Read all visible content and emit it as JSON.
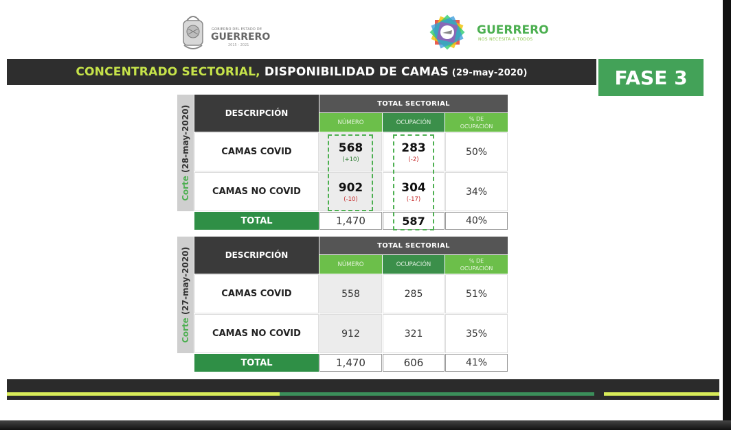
{
  "header": {
    "gov_logo": {
      "small_text": "GOBIERNO DEL ESTADO DE",
      "name": "GUERRERO",
      "years": "2015 - 2021"
    },
    "brand_logo": {
      "name": "GUERRERO",
      "slogan": "NOS NECESITA A TODOS"
    }
  },
  "title_bar": {
    "part1": "CONCENTRADO SECTORIAL,",
    "part2": " DISPONIBILIDAD DE CAMAS",
    "date": " (29-may-2020)"
  },
  "phase_badge": "FASE 3",
  "tables": [
    {
      "side_prefix": "Corte",
      "side_date": " (28-may-2020)",
      "headers": {
        "descripcion": "DESCRIPCIÓN",
        "total_sectorial": "TOTAL SECTORIAL",
        "numero": "NÚMERO",
        "ocupacion": "OCUPACIÓN",
        "pct_line1": "% DE",
        "pct_line2": "OCUPACIÓN"
      },
      "rows": [
        {
          "descripcion": "CAMAS COVID",
          "numero": "568",
          "numero_change": "(+10)",
          "ocupacion": "283",
          "ocupacion_change": "(-2)",
          "pct": "50%"
        },
        {
          "descripcion": "CAMAS NO COVID",
          "numero": "902",
          "numero_change": "(-10)",
          "ocupacion": "304",
          "ocupacion_change": "(-17)",
          "pct": "34%"
        }
      ],
      "total": {
        "label": "TOTAL",
        "numero": "1,470",
        "ocupacion": "587",
        "pct": "40%"
      }
    },
    {
      "side_prefix": "Corte",
      "side_date": " (27-may-2020)",
      "headers": {
        "descripcion": "DESCRIPCIÓN",
        "total_sectorial": "TOTAL SECTORIAL",
        "numero": "NÚMERO",
        "ocupacion": "OCUPACIÓN",
        "pct_line1": "% DE",
        "pct_line2": "OCUPACIÓN"
      },
      "rows": [
        {
          "descripcion": "CAMAS COVID",
          "numero": "558",
          "ocupacion": "285",
          "pct": "51%"
        },
        {
          "descripcion": "CAMAS NO COVID",
          "numero": "912",
          "ocupacion": "321",
          "pct": "35%"
        }
      ],
      "total": {
        "label": "TOTAL",
        "numero": "1,470",
        "ocupacion": "606",
        "pct": "41%"
      }
    }
  ],
  "colors": {
    "title_green": "#c6e34a",
    "phase_green": "#43a258",
    "header_green_light": "#6cbf4a",
    "header_green_dark": "#3b8f4a",
    "total_green": "#2f8f46",
    "increase": "#2e7d32",
    "decrease": "#c62828"
  }
}
